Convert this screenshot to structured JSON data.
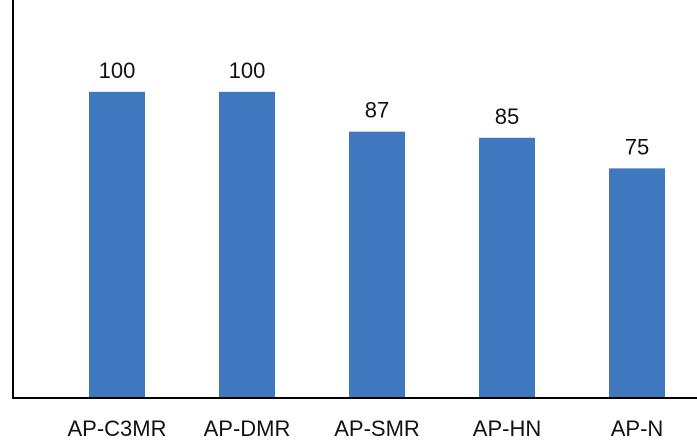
{
  "chart_data": {
    "type": "bar",
    "title": "",
    "xlabel": "",
    "ylabel": "",
    "categories": [
      "AP-C3MR",
      "AP-DMR",
      "AP-SMR",
      "AP-HN",
      "AP-N"
    ],
    "values": [
      100,
      100,
      87,
      85,
      75
    ],
    "value_labels": [
      "100",
      "100",
      "87",
      "85",
      "75"
    ],
    "ylim": [
      0,
      130
    ],
    "grid": false,
    "legend": "none",
    "bar_color": "#4078C0",
    "axis_color": "#000000",
    "text_color": "#111111"
  }
}
